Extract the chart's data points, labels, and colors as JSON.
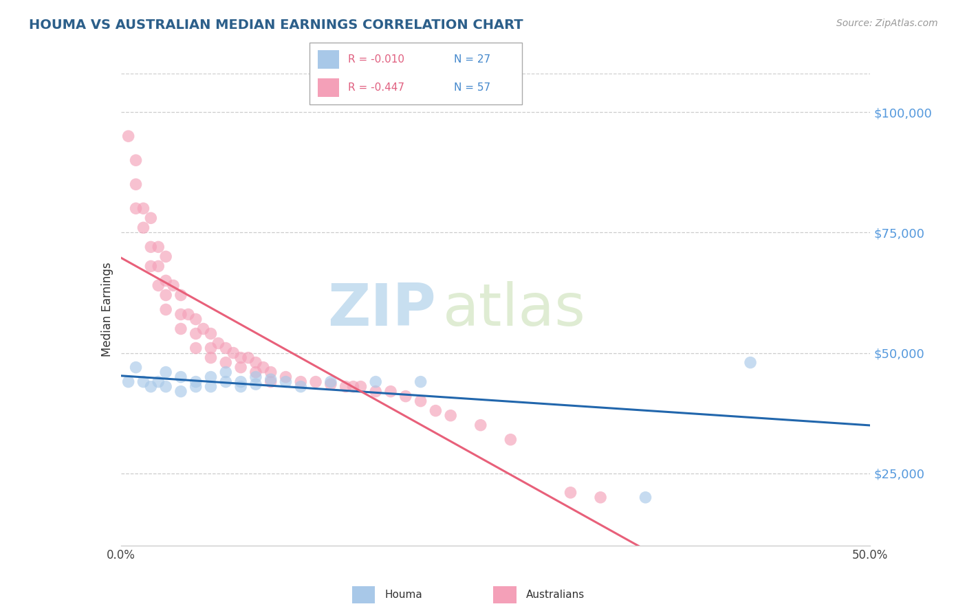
{
  "title": "HOUMA VS AUSTRALIAN MEDIAN EARNINGS CORRELATION CHART",
  "source": "Source: ZipAtlas.com",
  "ylabel": "Median Earnings",
  "yticks": [
    25000,
    50000,
    75000,
    100000
  ],
  "ytick_labels": [
    "$25,000",
    "$50,000",
    "$75,000",
    "$100,000"
  ],
  "xlim": [
    0.0,
    0.5
  ],
  "ylim": [
    10000,
    108000
  ],
  "houma_color": "#a8c8e8",
  "australian_color": "#f4a0b8",
  "houma_R": "-0.010",
  "houma_N": "27",
  "australian_R": "-0.447",
  "australian_N": "57",
  "regression_houma_color": "#2166ac",
  "regression_australian_color": "#e8607a",
  "watermark_zip": "ZIP",
  "watermark_atlas": "atlas",
  "grid_color": "#cccccc",
  "houma_points": [
    [
      0.005,
      44000
    ],
    [
      0.01,
      47000
    ],
    [
      0.015,
      44000
    ],
    [
      0.02,
      43000
    ],
    [
      0.025,
      44000
    ],
    [
      0.03,
      46000
    ],
    [
      0.03,
      43000
    ],
    [
      0.04,
      45000
    ],
    [
      0.04,
      42000
    ],
    [
      0.05,
      44000
    ],
    [
      0.05,
      43000
    ],
    [
      0.06,
      45000
    ],
    [
      0.06,
      43000
    ],
    [
      0.07,
      46000
    ],
    [
      0.07,
      44000
    ],
    [
      0.08,
      44000
    ],
    [
      0.08,
      43000
    ],
    [
      0.09,
      45000
    ],
    [
      0.09,
      43500
    ],
    [
      0.1,
      44500
    ],
    [
      0.11,
      44000
    ],
    [
      0.12,
      43000
    ],
    [
      0.14,
      44000
    ],
    [
      0.17,
      44000
    ],
    [
      0.2,
      44000
    ],
    [
      0.35,
      20000
    ],
    [
      0.42,
      48000
    ]
  ],
  "australian_points": [
    [
      0.005,
      95000
    ],
    [
      0.01,
      90000
    ],
    [
      0.01,
      85000
    ],
    [
      0.01,
      80000
    ],
    [
      0.015,
      80000
    ],
    [
      0.015,
      76000
    ],
    [
      0.02,
      78000
    ],
    [
      0.02,
      72000
    ],
    [
      0.02,
      68000
    ],
    [
      0.025,
      72000
    ],
    [
      0.025,
      68000
    ],
    [
      0.025,
      64000
    ],
    [
      0.03,
      70000
    ],
    [
      0.03,
      65000
    ],
    [
      0.03,
      62000
    ],
    [
      0.03,
      59000
    ],
    [
      0.035,
      64000
    ],
    [
      0.04,
      62000
    ],
    [
      0.04,
      58000
    ],
    [
      0.04,
      55000
    ],
    [
      0.045,
      58000
    ],
    [
      0.05,
      57000
    ],
    [
      0.05,
      54000
    ],
    [
      0.05,
      51000
    ],
    [
      0.055,
      55000
    ],
    [
      0.06,
      54000
    ],
    [
      0.06,
      51000
    ],
    [
      0.06,
      49000
    ],
    [
      0.065,
      52000
    ],
    [
      0.07,
      51000
    ],
    [
      0.07,
      48000
    ],
    [
      0.075,
      50000
    ],
    [
      0.08,
      49000
    ],
    [
      0.08,
      47000
    ],
    [
      0.085,
      49000
    ],
    [
      0.09,
      48000
    ],
    [
      0.09,
      46000
    ],
    [
      0.095,
      47000
    ],
    [
      0.1,
      46000
    ],
    [
      0.1,
      44000
    ],
    [
      0.11,
      45000
    ],
    [
      0.12,
      44000
    ],
    [
      0.13,
      44000
    ],
    [
      0.14,
      43500
    ],
    [
      0.15,
      43000
    ],
    [
      0.155,
      43000
    ],
    [
      0.16,
      43000
    ],
    [
      0.17,
      42000
    ],
    [
      0.18,
      42000
    ],
    [
      0.19,
      41000
    ],
    [
      0.2,
      40000
    ],
    [
      0.21,
      38000
    ],
    [
      0.22,
      37000
    ],
    [
      0.24,
      35000
    ],
    [
      0.26,
      32000
    ],
    [
      0.3,
      21000
    ],
    [
      0.32,
      20000
    ]
  ]
}
